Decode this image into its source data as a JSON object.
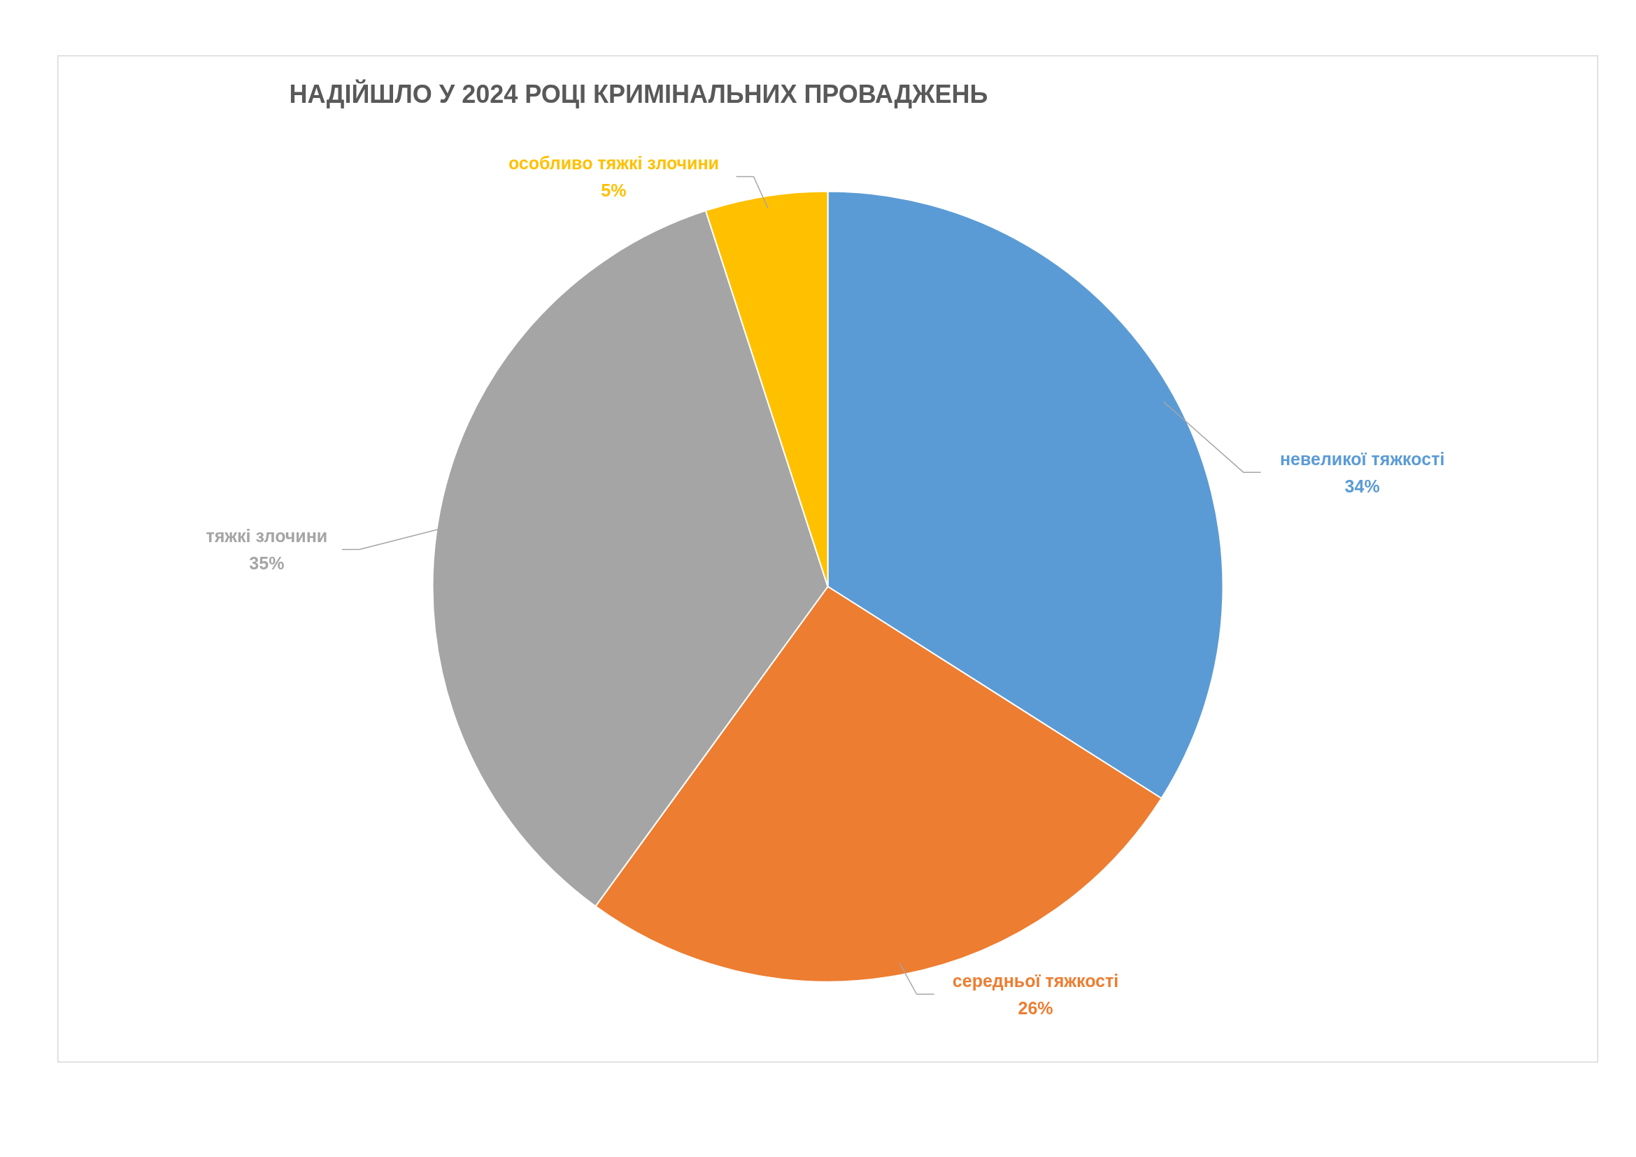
{
  "chart_data": {
    "type": "pie",
    "title": "НАДІЙШЛО У 2024 РОЦІ КРИМІНАЛЬНИХ ПРОВАДЖЕНЬ",
    "categories": [
      "невеликої тяжкості",
      "середньої тяжкості",
      "тяжкі злочини",
      "особливо тяжкі злочини"
    ],
    "values": [
      34,
      26,
      35,
      5
    ],
    "value_labels": [
      "34%",
      "26%",
      "35%",
      "5%"
    ],
    "colors": [
      "#5b9bd5",
      "#ed7d31",
      "#a5a5a5",
      "#ffc000"
    ]
  }
}
